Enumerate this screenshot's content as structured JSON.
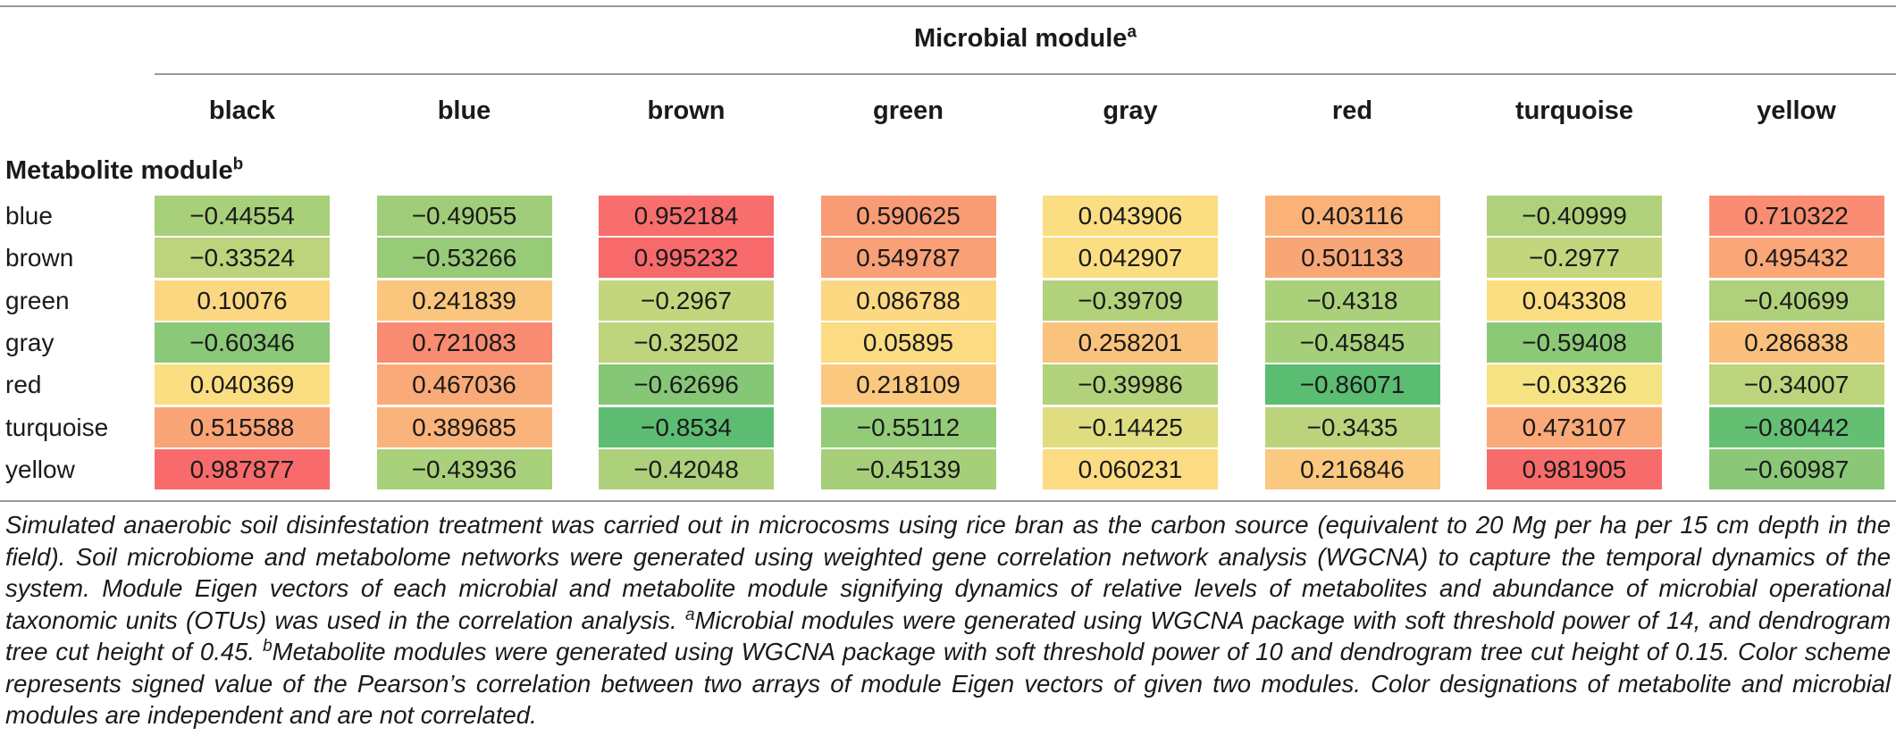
{
  "table": {
    "microbial_header": "Microbial module",
    "microbial_header_note": "a",
    "metabolite_header": "Metabolite module",
    "metabolite_header_note": "b",
    "columns": [
      "black",
      "blue",
      "brown",
      "green",
      "gray",
      "red",
      "turquoise",
      "yellow"
    ],
    "rows": [
      {
        "label": "blue",
        "values": [
          "−0.44554",
          "−0.49055",
          "0.952184",
          "0.590625",
          "0.043906",
          "0.403116",
          "−0.40999",
          "0.710322"
        ]
      },
      {
        "label": "brown",
        "values": [
          "−0.33524",
          "−0.53266",
          "0.995232",
          "0.549787",
          "0.042907",
          "0.501133",
          "−0.2977",
          "0.495432"
        ]
      },
      {
        "label": "green",
        "values": [
          "0.10076",
          "0.241839",
          "−0.2967",
          "0.086788",
          "−0.39709",
          "−0.4318",
          "0.043308",
          "−0.40699"
        ]
      },
      {
        "label": "gray",
        "values": [
          "−0.60346",
          "0.721083",
          "−0.32502",
          "0.05895",
          "0.258201",
          "−0.45845",
          "−0.59408",
          "0.286838"
        ]
      },
      {
        "label": "red",
        "values": [
          "0.040369",
          "0.467036",
          "−0.62696",
          "0.218109",
          "−0.39986",
          "−0.86071",
          "−0.03326",
          "−0.34007"
        ]
      },
      {
        "label": "turquoise",
        "values": [
          "0.515588",
          "0.389685",
          "−0.8534",
          "−0.55112",
          "−0.14425",
          "−0.3435",
          "0.473107",
          "−0.80442"
        ]
      },
      {
        "label": "yellow",
        "values": [
          "0.987877",
          "−0.43936",
          "−0.42048",
          "−0.45139",
          "0.060231",
          "0.216846",
          "0.981905",
          "−0.60987"
        ]
      }
    ]
  },
  "caption": {
    "text_1": "Simulated anaerobic soil disinfestation treatment was carried out in microcosms using rice bran as the carbon source (equivalent to 20 Mg per ha per 15 cm depth in the field). Soil microbiome and metabolome networks were generated using weighted gene correlation network analysis (WGCNA) to capture the temporal dynamics of the system. Module Eigen vectors of each microbial and metabolite module signifying dynamics of relative levels of metabolites and abundance of microbial operational taxonomic units (OTUs) was used in the correlation analysis.",
    "note_a": "a",
    "text_2": "Microbial modules were generated using WGCNA package with soft threshold power of 14, and dendrogram tree cut height of 0.45.",
    "note_b": "b",
    "text_3": "Metabolite modules were generated using WGCNA package with soft threshold power of 10 and dendrogram tree cut height of 0.15. Color scheme represents signed value of the Pearson’s correlation between two arrays of module Eigen vectors of given two modules. Color designations of metabolite and microbial modules are independent and are not correlated."
  },
  "colors": {
    "low": "#5bbd72",
    "mid": "#fbe383",
    "high": "#f8696b"
  }
}
